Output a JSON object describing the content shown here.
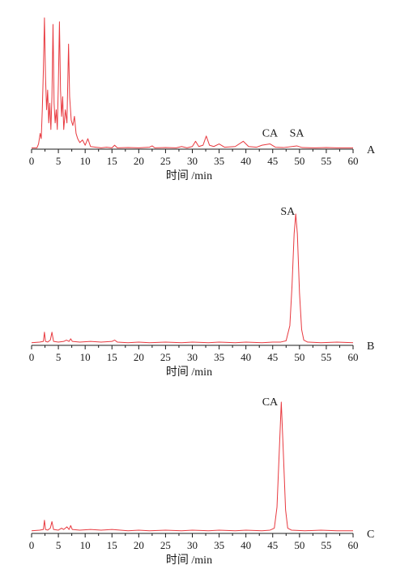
{
  "colors": {
    "trace": "#e8393f",
    "axis": "#1a1a1a"
  },
  "chart_data": [
    {
      "type": "line",
      "panel_label": "A",
      "xlabel": "时间 /min",
      "xlim": [
        0,
        60
      ],
      "xticks": [
        0,
        5,
        10,
        15,
        20,
        25,
        30,
        35,
        40,
        45,
        50,
        55,
        60
      ],
      "ylim": [
        0,
        100
      ],
      "grid": false,
      "annotations": [
        {
          "text": "CA",
          "x": 44.5,
          "y": 7
        },
        {
          "text": "SA",
          "x": 49.5,
          "y": 7
        }
      ],
      "series": [
        {
          "points": [
            [
              0,
              1
            ],
            [
              1,
              1
            ],
            [
              1.3,
              4
            ],
            [
              1.6,
              12
            ],
            [
              1.8,
              8
            ],
            [
              2.0,
              30
            ],
            [
              2.2,
              60
            ],
            [
              2.4,
              100
            ],
            [
              2.6,
              55
            ],
            [
              2.8,
              30
            ],
            [
              3.0,
              45
            ],
            [
              3.2,
              20
            ],
            [
              3.4,
              35
            ],
            [
              3.6,
              15
            ],
            [
              3.8,
              40
            ],
            [
              4.0,
              95
            ],
            [
              4.2,
              35
            ],
            [
              4.4,
              20
            ],
            [
              4.6,
              30
            ],
            [
              4.8,
              15
            ],
            [
              5.0,
              50
            ],
            [
              5.2,
              97
            ],
            [
              5.4,
              45
            ],
            [
              5.6,
              25
            ],
            [
              5.8,
              40
            ],
            [
              6.0,
              15
            ],
            [
              6.3,
              30
            ],
            [
              6.6,
              20
            ],
            [
              6.9,
              80
            ],
            [
              7.1,
              40
            ],
            [
              7.4,
              22
            ],
            [
              7.7,
              18
            ],
            [
              8.0,
              25
            ],
            [
              8.3,
              12
            ],
            [
              8.6,
              8
            ],
            [
              9.0,
              5
            ],
            [
              9.5,
              7
            ],
            [
              10.0,
              3
            ],
            [
              10.5,
              8
            ],
            [
              11,
              2
            ],
            [
              12,
              1.5
            ],
            [
              13,
              1
            ],
            [
              14,
              1.5
            ],
            [
              15,
              1
            ],
            [
              15.5,
              3
            ],
            [
              16,
              1
            ],
            [
              18,
              1.2
            ],
            [
              20,
              1
            ],
            [
              22,
              1.5
            ],
            [
              22.5,
              2.5
            ],
            [
              23,
              1
            ],
            [
              25,
              1.2
            ],
            [
              27,
              1
            ],
            [
              28,
              2
            ],
            [
              29,
              1
            ],
            [
              30,
              2
            ],
            [
              30.6,
              6
            ],
            [
              31.2,
              2
            ],
            [
              32,
              3
            ],
            [
              32.6,
              10
            ],
            [
              33.2,
              3
            ],
            [
              34,
              2
            ],
            [
              35,
              4
            ],
            [
              36,
              1.5
            ],
            [
              38,
              2
            ],
            [
              39.5,
              6
            ],
            [
              40.5,
              2
            ],
            [
              42,
              1.5
            ],
            [
              43,
              3
            ],
            [
              44.5,
              4
            ],
            [
              45.5,
              1.5
            ],
            [
              47,
              1.2
            ],
            [
              49.5,
              2.5
            ],
            [
              50.5,
              1.2
            ],
            [
              53,
              1
            ],
            [
              55,
              1.2
            ],
            [
              57,
              1
            ],
            [
              60,
              1
            ]
          ]
        }
      ]
    },
    {
      "type": "line",
      "panel_label": "B",
      "xlabel": "时间 /min",
      "xlim": [
        0,
        60
      ],
      "xticks": [
        0,
        5,
        10,
        15,
        20,
        25,
        30,
        35,
        40,
        45,
        50,
        55,
        60
      ],
      "ylim": [
        0,
        100
      ],
      "grid": false,
      "annotations": [
        {
          "text": "SA",
          "x": 47.8,
          "y": 97
        }
      ],
      "series": [
        {
          "points": [
            [
              0,
              2
            ],
            [
              1.5,
              2.5
            ],
            [
              2.2,
              3
            ],
            [
              2.4,
              10
            ],
            [
              2.6,
              3
            ],
            [
              3.0,
              2.5
            ],
            [
              3.5,
              4
            ],
            [
              3.8,
              10
            ],
            [
              4.1,
              3
            ],
            [
              5,
              2.5
            ],
            [
              6,
              3
            ],
            [
              6.5,
              4
            ],
            [
              7.0,
              3
            ],
            [
              7.3,
              5
            ],
            [
              7.6,
              3
            ],
            [
              9,
              2.5
            ],
            [
              11,
              3
            ],
            [
              13,
              2.5
            ],
            [
              15,
              3
            ],
            [
              15.5,
              4
            ],
            [
              16,
              2.5
            ],
            [
              18,
              2
            ],
            [
              20,
              2.5
            ],
            [
              22,
              2
            ],
            [
              25,
              2.5
            ],
            [
              28,
              2
            ],
            [
              30,
              2.5
            ],
            [
              33,
              2
            ],
            [
              35,
              2.5
            ],
            [
              38,
              2
            ],
            [
              40,
              2.5
            ],
            [
              43,
              2
            ],
            [
              45,
              2.5
            ],
            [
              46.5,
              2.5
            ],
            [
              47.5,
              3.5
            ],
            [
              48.2,
              15
            ],
            [
              48.6,
              45
            ],
            [
              49.0,
              85
            ],
            [
              49.3,
              100
            ],
            [
              49.6,
              85
            ],
            [
              50.0,
              40
            ],
            [
              50.4,
              12
            ],
            [
              50.8,
              4
            ],
            [
              51.5,
              2.5
            ],
            [
              54,
              2
            ],
            [
              57,
              2.5
            ],
            [
              60,
              2
            ]
          ]
        }
      ]
    },
    {
      "type": "line",
      "panel_label": "C",
      "xlabel": "时间 /min",
      "xlim": [
        0,
        60
      ],
      "xticks": [
        0,
        5,
        10,
        15,
        20,
        25,
        30,
        35,
        40,
        45,
        50,
        55,
        60
      ],
      "ylim": [
        0,
        100
      ],
      "grid": false,
      "annotations": [
        {
          "text": "CA",
          "x": 44.5,
          "y": 95
        }
      ],
      "series": [
        {
          "points": [
            [
              0,
              2
            ],
            [
              1.5,
              2.5
            ],
            [
              2.2,
              3
            ],
            [
              2.4,
              10
            ],
            [
              2.6,
              3
            ],
            [
              3.0,
              2.5
            ],
            [
              3.5,
              4
            ],
            [
              3.8,
              9
            ],
            [
              4.1,
              3
            ],
            [
              5,
              2.5
            ],
            [
              5.6,
              4
            ],
            [
              6.0,
              3
            ],
            [
              6.6,
              5
            ],
            [
              7.0,
              3
            ],
            [
              7.3,
              6
            ],
            [
              7.6,
              3
            ],
            [
              9,
              2.5
            ],
            [
              11,
              3
            ],
            [
              13,
              2.5
            ],
            [
              15,
              3
            ],
            [
              18,
              2
            ],
            [
              20,
              2.5
            ],
            [
              22,
              2
            ],
            [
              25,
              2.5
            ],
            [
              28,
              2
            ],
            [
              30,
              2.5
            ],
            [
              33,
              2
            ],
            [
              35,
              2.5
            ],
            [
              38,
              2
            ],
            [
              40,
              2.5
            ],
            [
              43,
              2
            ],
            [
              44.5,
              2.5
            ],
            [
              45.3,
              4
            ],
            [
              45.8,
              20
            ],
            [
              46.2,
              60
            ],
            [
              46.6,
              100
            ],
            [
              47.0,
              60
            ],
            [
              47.4,
              18
            ],
            [
              47.8,
              4
            ],
            [
              48.5,
              2.5
            ],
            [
              51,
              2
            ],
            [
              54,
              2.5
            ],
            [
              57,
              2
            ],
            [
              60,
              2
            ]
          ]
        }
      ]
    }
  ]
}
